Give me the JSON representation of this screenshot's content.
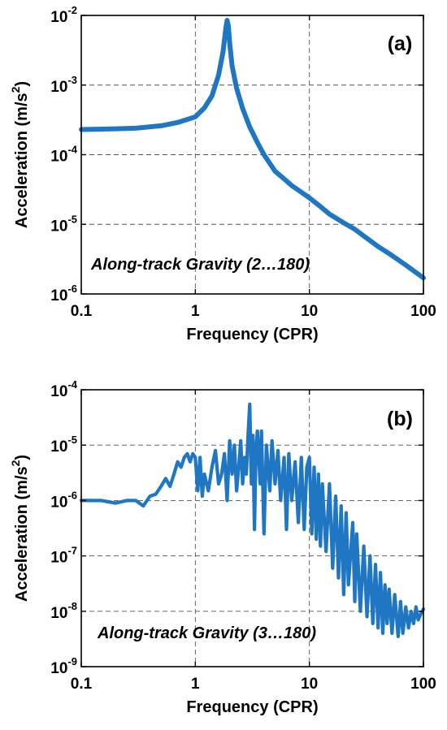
{
  "colors": {
    "series": "#1f77c4",
    "axis": "#000000",
    "grid": "#555555"
  },
  "chart_data": [
    {
      "type": "line",
      "panel_label": "(a)",
      "annotation": "Along-track Gravity (2…180)",
      "xlabel": "Frequency (CPR)",
      "ylabel_main": "Acceleration (m/s",
      "ylabel_sup": "2",
      "ylabel_end": ")",
      "xscale": "log",
      "yscale": "log",
      "xlim": [
        0.1,
        100
      ],
      "ylim": [
        1e-06,
        0.01
      ],
      "grid": true,
      "xticks": [
        {
          "value": 0.1,
          "label": "0.1"
        },
        {
          "value": 1,
          "label": "1"
        },
        {
          "value": 10,
          "label": "10"
        },
        {
          "value": 100,
          "label": "100"
        }
      ],
      "yticks": [
        {
          "value": 1e-06,
          "base": "10",
          "exp": "-6"
        },
        {
          "value": 1e-05,
          "base": "10",
          "exp": "-5"
        },
        {
          "value": 0.0001,
          "base": "10",
          "exp": "-4"
        },
        {
          "value": 0.001,
          "base": "10",
          "exp": "-3"
        },
        {
          "value": 0.01,
          "base": "10",
          "exp": "-2"
        }
      ],
      "series": [
        {
          "color": "#1f77c4",
          "x": [
            0.1,
            0.2,
            0.3,
            0.5,
            0.7,
            1.0,
            1.2,
            1.4,
            1.6,
            1.75,
            1.85,
            1.9,
            1.95,
            2.0,
            2.1,
            2.3,
            2.6,
            3.0,
            3.5,
            4.0,
            5.0,
            6.0,
            7.0,
            8.0,
            10.0,
            12.0,
            15.0,
            20.0,
            25.0,
            30.0,
            40.0,
            50.0,
            70.0,
            100.0
          ],
          "y": [
            0.00023,
            0.000235,
            0.00024,
            0.00026,
            0.00029,
            0.00035,
            0.00047,
            0.0007,
            0.0014,
            0.003,
            0.0065,
            0.0085,
            0.007,
            0.004,
            0.0019,
            0.0009,
            0.00046,
            0.00025,
            0.00015,
            0.0001,
            5.8e-05,
            4.5e-05,
            3.6e-05,
            3.1e-05,
            2.4e-05,
            1.9e-05,
            1.4e-05,
            1.05e-05,
            8.5e-06,
            6.8e-06,
            4.8e-06,
            3.8e-06,
            2.6e-06,
            1.7e-06
          ]
        }
      ]
    },
    {
      "type": "line",
      "panel_label": "(b)",
      "annotation": "Along-track Gravity (3…180)",
      "xlabel": "Frequency (CPR)",
      "ylabel_main": "Acceleration (m/s",
      "ylabel_sup": "2",
      "ylabel_end": ")",
      "xscale": "log",
      "yscale": "log",
      "xlim": [
        0.1,
        100
      ],
      "ylim": [
        1e-09,
        0.0001
      ],
      "grid": true,
      "xticks": [
        {
          "value": 0.1,
          "label": "0.1"
        },
        {
          "value": 1,
          "label": "1"
        },
        {
          "value": 10,
          "label": "10"
        },
        {
          "value": 100,
          "label": "100"
        }
      ],
      "yticks": [
        {
          "value": 1e-09,
          "base": "10",
          "exp": "-9"
        },
        {
          "value": 1e-08,
          "base": "10",
          "exp": "-8"
        },
        {
          "value": 1e-07,
          "base": "10",
          "exp": "-7"
        },
        {
          "value": 1e-06,
          "base": "10",
          "exp": "-6"
        },
        {
          "value": 1e-05,
          "base": "10",
          "exp": "-5"
        },
        {
          "value": 0.0001,
          "base": "10",
          "exp": "-4"
        }
      ],
      "series": [
        {
          "color": "#1f77c4",
          "x": [
            0.1,
            0.15,
            0.2,
            0.25,
            0.3,
            0.35,
            0.4,
            0.45,
            0.5,
            0.55,
            0.6,
            0.65,
            0.7,
            0.75,
            0.8,
            0.85,
            0.9,
            0.95,
            1.0,
            1.05,
            1.1,
            1.15,
            1.2,
            1.3,
            1.4,
            1.5,
            1.6,
            1.7,
            1.8,
            1.9,
            2.0,
            2.1,
            2.2,
            2.3,
            2.4,
            2.5,
            2.6,
            2.7,
            2.8,
            2.9,
            3.0,
            3.1,
            3.2,
            3.3,
            3.4,
            3.5,
            3.7,
            3.8,
            4.0,
            4.2,
            4.5,
            4.7,
            5.0,
            5.3,
            5.6,
            6.0,
            6.3,
            6.6,
            7.0,
            7.5,
            8.0,
            8.5,
            9.0,
            9.5,
            10,
            10.5,
            11,
            11.5,
            12,
            12.5,
            13,
            14,
            15,
            16,
            17,
            18,
            19,
            20,
            21,
            22,
            24,
            25,
            26,
            28,
            30,
            32,
            34,
            36,
            38,
            40,
            42,
            44,
            46,
            48,
            50,
            53,
            56,
            60,
            63,
            66,
            70,
            74,
            78,
            82,
            86,
            90,
            95,
            100
          ],
          "y": [
            1e-06,
            1e-06,
            9e-07,
            1e-06,
            1e-06,
            8e-07,
            1.2e-06,
            1.3e-06,
            1.8e-06,
            2.5e-06,
            1.8e-06,
            3e-06,
            5e-06,
            4e-06,
            6e-06,
            7e-06,
            5e-06,
            7e-06,
            6e-06,
            1.5e-06,
            6e-06,
            1.2e-06,
            3e-06,
            1.5e-06,
            4e-06,
            8e-06,
            2e-06,
            3e-06,
            7e-06,
            1e-06,
            1.2e-05,
            3e-06,
            1e-05,
            1.5e-06,
            4e-06,
            1.2e-05,
            2e-06,
            6e-06,
            3e-06,
            1.5e-05,
            5.5e-05,
            2e-06,
            1.5e-05,
            3e-07,
            8e-06,
            1.8e-05,
            2e-06,
            1.8e-05,
            2.5e-07,
            1e-05,
            1.5e-06,
            1.2e-05,
            2e-06,
            8e-06,
            1e-06,
            6e-06,
            3e-07,
            7e-06,
            1e-06,
            5e-06,
            4e-07,
            6e-06,
            3e-07,
            4e-06,
            6e-06,
            2.5e-07,
            4e-06,
            2e-07,
            3e-06,
            1.5e-07,
            2e-06,
            1.2e-07,
            2e-06,
            6e-08,
            1.2e-06,
            4e-08,
            8e-07,
            2e-08,
            6e-07,
            3e-08,
            4e-07,
            1.5e-08,
            2.5e-07,
            1e-08,
            1.5e-07,
            8e-09,
            1e-07,
            6e-09,
            7e-08,
            5e-09,
            5e-08,
            4e-09,
            3e-08,
            6e-09,
            2.5e-08,
            4e-09,
            2e-08,
            3.5e-09,
            1.5e-08,
            4e-09,
            1.2e-08,
            5e-09,
            1e-08,
            6e-09,
            1.2e-08,
            7e-09,
            9e-09,
            1.1e-08
          ]
        }
      ]
    }
  ]
}
